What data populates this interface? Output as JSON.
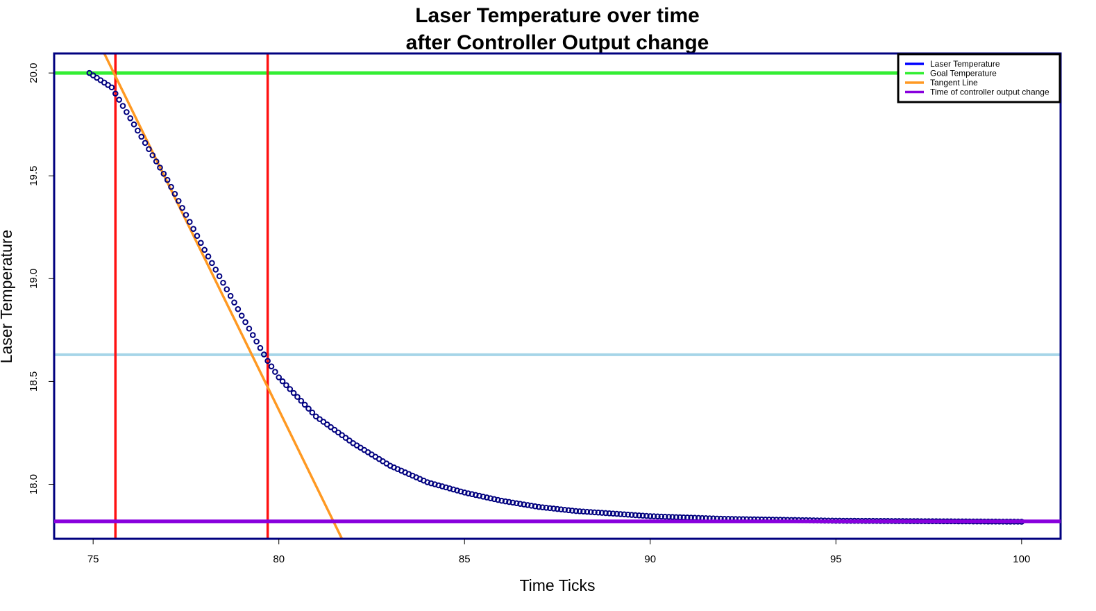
{
  "chart_data": {
    "type": "scatter",
    "title_line1": "Laser Temperature over time",
    "title_line2": "after Controller Output change",
    "xlabel": "Time Ticks",
    "ylabel": "Laser Temperature",
    "xlim": [
      73.95,
      101.05
    ],
    "ylim": [
      17.735,
      20.095
    ],
    "x_ticks": [
      "75",
      "80",
      "85",
      "90",
      "95",
      "100"
    ],
    "y_ticks": [
      "18.0",
      "18.5",
      "19.0",
      "19.5",
      "20.0"
    ],
    "series": {
      "temperature": {
        "name": "Laser Temperature",
        "x_start": 74.9,
        "x_end": 100,
        "x_step": 0.1,
        "model": "y = 17.82 + 2.18*exp(-(x-74.9)/3.7) * (1 + 3.7*(x-74.9)/... ) rendered as smooth decay from 20.0 to 17.82",
        "color": "#00007f",
        "sample_points": [
          [
            74.9,
            20.0
          ],
          [
            75.5,
            19.93
          ],
          [
            76.0,
            19.78
          ],
          [
            77.0,
            19.48
          ],
          [
            78.0,
            19.14
          ],
          [
            79.0,
            18.82
          ],
          [
            79.7,
            18.6
          ],
          [
            80.0,
            18.52
          ],
          [
            81.0,
            18.33
          ],
          [
            82.0,
            18.2
          ],
          [
            83.0,
            18.09
          ],
          [
            84.0,
            18.01
          ],
          [
            85.0,
            17.96
          ],
          [
            86.0,
            17.92
          ],
          [
            87.0,
            17.89
          ],
          [
            88.0,
            17.87
          ],
          [
            90.0,
            17.845
          ],
          [
            92.0,
            17.832
          ],
          [
            95.0,
            17.823
          ],
          [
            100.0,
            17.818
          ]
        ]
      }
    },
    "lines": {
      "goal": {
        "name": "Goal Temperature",
        "y": 20.0,
        "color": "#33ee33"
      },
      "final": {
        "name": "Time of controller output change",
        "y": 17.82,
        "color": "#8800dd"
      },
      "mark": {
        "y": 18.63,
        "color": "#a6d5e8"
      },
      "tangent": {
        "name": "Tangent Line",
        "x1": 75.3,
        "y1": 20.095,
        "x2": 81.7,
        "y2": 17.735,
        "color": "#ff9922"
      },
      "vlines": [
        {
          "x": 75.6,
          "color": "#ff1111"
        },
        {
          "x": 79.7,
          "color": "#ff1111"
        }
      ]
    },
    "legend": {
      "position": "top-right",
      "items": [
        {
          "label": "Laser Temperature",
          "color": "#0000ff"
        },
        {
          "label": "Goal Temperature",
          "color": "#33ee33"
        },
        {
          "label": "Tangent Line",
          "color": "#ff9922"
        },
        {
          "label": "Time of controller output change",
          "color": "#8800dd"
        }
      ]
    },
    "grid": false
  }
}
